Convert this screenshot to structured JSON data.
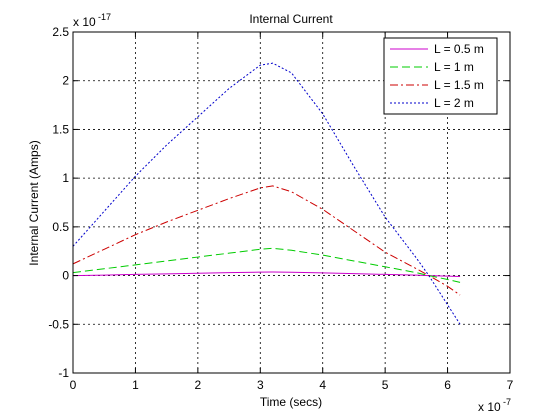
{
  "chart_data": {
    "type": "line",
    "title": "Internal Current",
    "xlabel": "Time (secs)",
    "ylabel": "Internal Current (Amps)",
    "x_exponent_label": "x 10",
    "x_exponent": "-7",
    "y_exponent_label": "x 10",
    "y_exponent": "-17",
    "xlim": [
      0,
      7
    ],
    "ylim": [
      -1,
      2.5
    ],
    "x_ticks": [
      "0",
      "1",
      "2",
      "3",
      "4",
      "5",
      "6",
      "7"
    ],
    "y_ticks": [
      "-1",
      "-0.5",
      "0",
      "0.5",
      "1",
      "1.5",
      "2",
      "2.5"
    ],
    "grid": true,
    "legend_position": "top-right",
    "series": [
      {
        "name": "L = 0.5 m",
        "color": "#cc00cc",
        "style": "solid",
        "x": [
          0,
          0.5,
          1,
          1.5,
          2,
          2.5,
          3,
          3.2,
          3.5,
          4,
          4.5,
          5,
          5.5,
          5.7,
          6,
          6.2
        ],
        "y": [
          0.0,
          0.005,
          0.012,
          0.018,
          0.024,
          0.03,
          0.035,
          0.036,
          0.034,
          0.028,
          0.02,
          0.012,
          0.004,
          0.0,
          -0.006,
          -0.01
        ]
      },
      {
        "name": "L = 1 m",
        "color": "#00cc00",
        "style": "dash",
        "x": [
          0,
          0.5,
          1,
          1.5,
          2,
          2.5,
          3,
          3.2,
          3.5,
          4,
          4.5,
          5,
          5.5,
          5.7,
          6,
          6.2
        ],
        "y": [
          0.03,
          0.07,
          0.11,
          0.15,
          0.19,
          0.23,
          0.27,
          0.28,
          0.26,
          0.21,
          0.15,
          0.09,
          0.03,
          0.0,
          -0.04,
          -0.07
        ]
      },
      {
        "name": "L = 1.5 m",
        "color": "#cc0000",
        "style": "dashdot",
        "x": [
          0,
          0.5,
          1,
          1.5,
          2,
          2.5,
          3,
          3.2,
          3.5,
          4,
          4.5,
          5,
          5.5,
          5.7,
          6,
          6.2
        ],
        "y": [
          0.12,
          0.27,
          0.42,
          0.55,
          0.67,
          0.79,
          0.9,
          0.92,
          0.86,
          0.68,
          0.46,
          0.24,
          0.07,
          0.0,
          -0.11,
          -0.2
        ]
      },
      {
        "name": "L = 2 m",
        "color": "#0000cc",
        "style": "dot",
        "x": [
          0,
          0.5,
          1,
          1.5,
          2,
          2.5,
          3,
          3.2,
          3.5,
          4,
          4.5,
          5,
          5.5,
          5.7,
          6,
          6.2
        ],
        "y": [
          0.3,
          0.66,
          1.02,
          1.34,
          1.63,
          1.92,
          2.16,
          2.18,
          2.08,
          1.66,
          1.12,
          0.6,
          0.18,
          0.0,
          -0.3,
          -0.5
        ]
      }
    ]
  }
}
